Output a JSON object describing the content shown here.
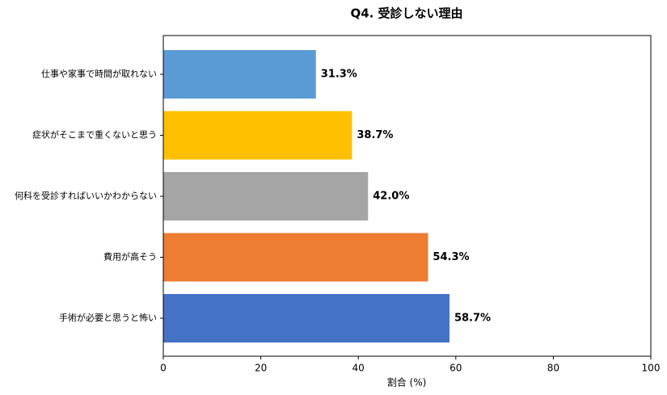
{
  "chart_data": {
    "type": "barh",
    "title": "Q4. 受診しない理由",
    "x_label": "割合 (%)",
    "categories": [
      "仕事や家事で時間が取れない",
      "症状がそこまで重くないと思う",
      "何科を受診すればいいかわからない",
      "費用が高そう",
      "手術が必要と思うと怖い"
    ],
    "values": [
      31.3,
      38.7,
      42.0,
      54.3,
      58.7
    ],
    "value_labels": [
      "31.3%",
      "38.7%",
      "42.0%",
      "54.3%",
      "58.7%"
    ],
    "colors": [
      "#5b9bd5",
      "#ffc000",
      "#a5a5a5",
      "#ed7d31",
      "#4472c4"
    ],
    "xlim": [
      0,
      100
    ],
    "xticks": [
      0,
      20,
      40,
      60,
      80,
      100
    ],
    "grid": false
  }
}
